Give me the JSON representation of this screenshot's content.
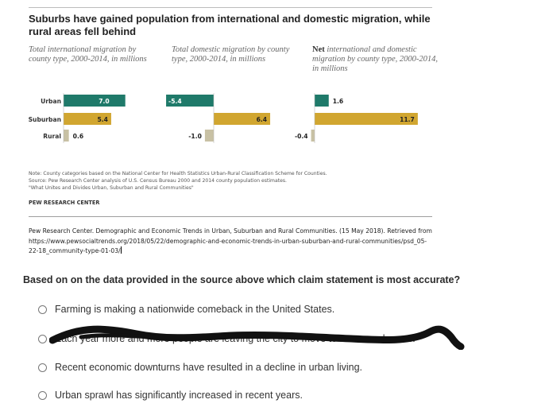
{
  "chart_data": {
    "type": "bar",
    "orientation": "horizontal",
    "title": "Suburbs have gained population from international and domestic migration, while rural areas fell behind",
    "categories": [
      "Urban",
      "Suburban",
      "Rural"
    ],
    "panels": [
      {
        "subtitle": "Total international migration by county type, 2000-2014, in millions",
        "values": [
          7.0,
          5.4,
          0.6
        ],
        "labels": [
          "7.0",
          "5.4",
          "0.6"
        ]
      },
      {
        "subtitle": "Total domestic migration by county type, 2000-2014, in millions",
        "values": [
          -5.4,
          6.4,
          -1.0
        ],
        "labels": [
          "-5.4",
          "6.4",
          "-1.0"
        ]
      },
      {
        "subtitle_bold": "Net",
        "subtitle": "international and domestic migration by county type, 2000-2014, in millions",
        "values": [
          1.6,
          11.7,
          -0.4
        ],
        "labels": [
          "1.6",
          "11.7",
          "-0.4"
        ]
      }
    ],
    "colors": {
      "Urban": "#1f7a6a",
      "Suburban": "#d1a630",
      "Rural": "#c8c1a4"
    },
    "notes": [
      "Note: County categories based on the National Center for Health Statistics Urban-Rural Classification Scheme for Counties.",
      "Source: Pew Research Center analysis of U.S. Census Bureau 2000 and 2014 county population estimates.",
      "\"What Unites and Divides Urban, Suburban and Rural Communities\""
    ],
    "credit": "PEW RESEARCH CENTER"
  },
  "citation": "Pew Research Center. Demographic and Economic Trends in Urban, Suburban and Rural Communities. (15 May 2018). Retrieved from https://www.pewsocialtrends.org/2018/05/22/demographic-and-economic-trends-in-urban-suburban-and-rural-communities/psd_05-22-18_community-type-01-03/",
  "question": "Based on on the data provided in the source above which claim statement is most accurate?",
  "options": [
    "Farming is making a nationwide comeback in the United States.",
    "Each year more and more people are leaving the city to move to more rural areas.",
    "Recent economic downturns have resulted in a decline in urban living.",
    "Urban sprawl has significantly increased in recent years."
  ]
}
